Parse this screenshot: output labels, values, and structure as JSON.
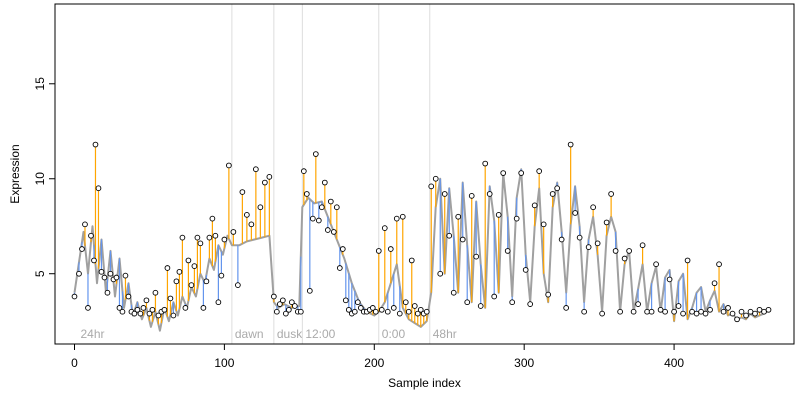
{
  "chart_data": {
    "type": "scatter",
    "title": "",
    "xlabel": "Sample index",
    "ylabel": "Expression",
    "xlim": [
      -13,
      480
    ],
    "ylim": [
      1.3,
      19.2
    ],
    "x_ticks": [
      0,
      100,
      200,
      300,
      400
    ],
    "y_ticks": [
      5,
      10,
      15
    ],
    "grid": false,
    "legend": "none",
    "colors": {
      "fitted_line": "#a0a0a0",
      "residual_above": "#ffa500",
      "residual_below": "#6495ed",
      "points_fill": "#ffffff",
      "points_stroke": "#000000",
      "phase_lines": "#dddddd",
      "phase_labels": "#aaaaaa"
    },
    "phase_markers": [
      {
        "x": 2,
        "label": "24hr",
        "line": false
      },
      {
        "x": 105,
        "label": "dawn",
        "line": true
      },
      {
        "x": 133,
        "label": "dusk",
        "line": true
      },
      {
        "x": 152,
        "label": "12:00",
        "line": true
      },
      {
        "x": 203,
        "label": "0:00",
        "line": true
      },
      {
        "x": 237,
        "label": "48hr",
        "line": true
      }
    ],
    "series": [
      {
        "role": "fitted",
        "x": [
          0,
          6,
          9,
          12,
          15,
          18,
          21,
          24,
          27,
          30,
          33,
          36,
          39,
          42,
          45,
          48,
          51,
          54,
          57,
          60,
          63,
          66,
          69,
          72,
          75,
          78,
          81,
          84,
          87,
          90,
          93,
          96,
          99,
          102,
          105,
          110,
          115,
          120,
          125,
          130,
          133,
          136,
          140,
          145,
          150,
          152,
          156,
          160,
          165,
          170,
          175,
          180,
          185,
          190,
          195,
          200,
          203,
          207,
          211,
          215,
          219,
          223,
          227,
          231,
          235,
          238,
          241,
          244,
          247,
          250,
          253,
          256,
          259,
          262,
          265,
          268,
          271,
          274,
          277,
          280,
          283,
          286,
          289,
          292,
          295,
          298,
          301,
          304,
          307,
          310,
          313,
          316,
          319,
          322,
          325,
          328,
          331,
          334,
          337,
          340,
          343,
          346,
          349,
          352,
          355,
          358,
          361,
          364,
          367,
          370,
          373,
          376,
          379,
          382,
          385,
          388,
          391,
          394,
          397,
          400,
          403,
          406,
          409,
          412,
          415,
          418,
          421,
          424,
          427,
          430,
          433,
          436,
          439,
          442,
          445,
          448,
          451,
          454,
          457,
          460,
          463
        ],
        "y": [
          4.0,
          7.2,
          5.0,
          7.5,
          4.5,
          6.8,
          4.0,
          6.2,
          3.8,
          5.8,
          3.2,
          4.5,
          2.8,
          3.5,
          2.6,
          3.2,
          2.2,
          3.0,
          2.0,
          3.2,
          2.5,
          3.5,
          2.8,
          3.8,
          3.2,
          4.3,
          3.8,
          5.0,
          4.5,
          5.8,
          5.2,
          6.5,
          6.0,
          7.0,
          6.5,
          6.5,
          6.7,
          6.8,
          6.9,
          7.0,
          3.5,
          3.2,
          3.4,
          3.2,
          3.3,
          8.5,
          9.0,
          8.7,
          8.8,
          7.8,
          6.8,
          5.8,
          4.5,
          3.5,
          3.0,
          2.8,
          3.0,
          3.5,
          4.5,
          5.5,
          3.2,
          2.6,
          2.4,
          2.2,
          2.5,
          4.0,
          8.5,
          10.0,
          5.0,
          9.5,
          7.0,
          4.0,
          9.8,
          6.5,
          3.5,
          8.8,
          5.5,
          3.2,
          9.6,
          7.8,
          4.0,
          10.3,
          8.0,
          3.8,
          9.0,
          10.5,
          6.0,
          3.5,
          7.5,
          9.5,
          5.0,
          3.5,
          8.5,
          9.8,
          7.2,
          4.0,
          7.6,
          9.6,
          7.5,
          3.5,
          6.8,
          8.0,
          6.0,
          3.0,
          7.0,
          8.0,
          7.2,
          3.0,
          5.5,
          6.2,
          3.0,
          4.2,
          5.5,
          3.0,
          4.5,
          5.4,
          3.0,
          4.8,
          5.2,
          2.5,
          4.6,
          5.0,
          2.6,
          3.2,
          4.0,
          4.3,
          3.0,
          3.6,
          4.1,
          3.0,
          3.4,
          2.8,
          2.9,
          2.6,
          2.7,
          2.6,
          2.9,
          2.7,
          2.8,
          2.9,
          3.1
        ]
      },
      {
        "role": "observed",
        "x": [
          0,
          3,
          5,
          7,
          9,
          11,
          13,
          14,
          16,
          18,
          20,
          22,
          24,
          26,
          28,
          30,
          32,
          34,
          36,
          38,
          40,
          42,
          44,
          46,
          48,
          50,
          52,
          54,
          56,
          58,
          60,
          62,
          64,
          66,
          68,
          70,
          72,
          74,
          76,
          78,
          80,
          82,
          84,
          86,
          88,
          90,
          92,
          94,
          96,
          98,
          100,
          103,
          106,
          109,
          112,
          115,
          118,
          121,
          124,
          127,
          130,
          133,
          135,
          137,
          139,
          141,
          143,
          145,
          147,
          149,
          151,
          153,
          155,
          157,
          159,
          161,
          163,
          165,
          167,
          169,
          171,
          173,
          175,
          177,
          179,
          181,
          183,
          185,
          187,
          189,
          191,
          193,
          195,
          197,
          199,
          201,
          203,
          205,
          207,
          209,
          211,
          213,
          215,
          217,
          219,
          221,
          223,
          225,
          227,
          229,
          231,
          233,
          235,
          238,
          241,
          244,
          247,
          250,
          253,
          256,
          259,
          262,
          265,
          268,
          271,
          274,
          277,
          280,
          283,
          286,
          289,
          292,
          295,
          298,
          301,
          304,
          307,
          310,
          313,
          316,
          319,
          322,
          325,
          328,
          331,
          334,
          337,
          340,
          343,
          346,
          349,
          352,
          355,
          358,
          361,
          364,
          367,
          370,
          373,
          376,
          379,
          382,
          385,
          388,
          391,
          394,
          397,
          400,
          403,
          406,
          409,
          412,
          415,
          418,
          421,
          424,
          427,
          430,
          433,
          436,
          439,
          442,
          445,
          448,
          451,
          454,
          457,
          460,
          463
        ],
        "y": [
          3.8,
          5.0,
          6.3,
          7.6,
          3.2,
          7.0,
          5.7,
          11.8,
          9.5,
          5.1,
          4.8,
          4.0,
          5.0,
          4.7,
          4.8,
          3.2,
          3.0,
          4.9,
          3.8,
          3.0,
          2.9,
          3.1,
          2.9,
          3.2,
          3.6,
          2.9,
          3.1,
          4.0,
          2.8,
          3.0,
          3.1,
          5.3,
          3.7,
          2.8,
          4.6,
          5.1,
          6.9,
          3.2,
          5.7,
          4.4,
          5.4,
          6.9,
          6.6,
          3.2,
          4.6,
          6.9,
          7.9,
          7.0,
          3.5,
          4.9,
          6.8,
          10.7,
          7.2,
          4.4,
          9.3,
          8.1,
          7.6,
          10.5,
          8.5,
          9.8,
          10.1,
          3.8,
          3.0,
          3.4,
          3.6,
          2.9,
          3.1,
          3.5,
          3.3,
          3.0,
          3.0,
          10.4,
          9.2,
          4.1,
          7.9,
          11.3,
          7.8,
          8.5,
          9.8,
          7.3,
          8.8,
          7.2,
          8.5,
          5.3,
          6.3,
          3.6,
          3.1,
          2.9,
          3.0,
          3.5,
          3.2,
          3.0,
          3.0,
          3.1,
          3.2,
          3.0,
          6.2,
          3.1,
          7.4,
          3.0,
          6.3,
          3.2,
          7.9,
          2.9,
          8.0,
          3.5,
          3.0,
          5.7,
          3.3,
          2.9,
          3.1,
          2.9,
          3.0,
          9.6,
          10.0,
          5.0,
          9.2,
          7.0,
          4.0,
          8.0,
          6.8,
          3.5,
          9.1,
          5.9,
          3.3,
          10.8,
          9.2,
          3.8,
          8.1,
          10.3,
          6.2,
          3.5,
          7.9,
          10.3,
          5.2,
          3.4,
          8.6,
          10.4,
          7.6,
          3.9,
          9.2,
          9.5,
          6.8,
          3.2,
          11.8,
          8.2,
          6.9,
          3.0,
          6.4,
          8.5,
          6.6,
          2.9,
          7.7,
          9.2,
          6.2,
          3.0,
          5.8,
          6.2,
          3.0,
          3.4,
          6.5,
          3.0,
          3.0,
          5.5,
          3.1,
          3.0,
          4.7,
          3.0,
          3.3,
          2.9,
          5.7,
          3.0,
          2.9,
          3.0,
          2.9,
          3.1,
          4.5,
          5.5,
          3.0,
          3.2,
          2.9,
          2.6,
          3.0,
          2.8,
          3.0,
          2.9,
          3.1,
          3.0,
          3.1
        ]
      }
    ]
  }
}
